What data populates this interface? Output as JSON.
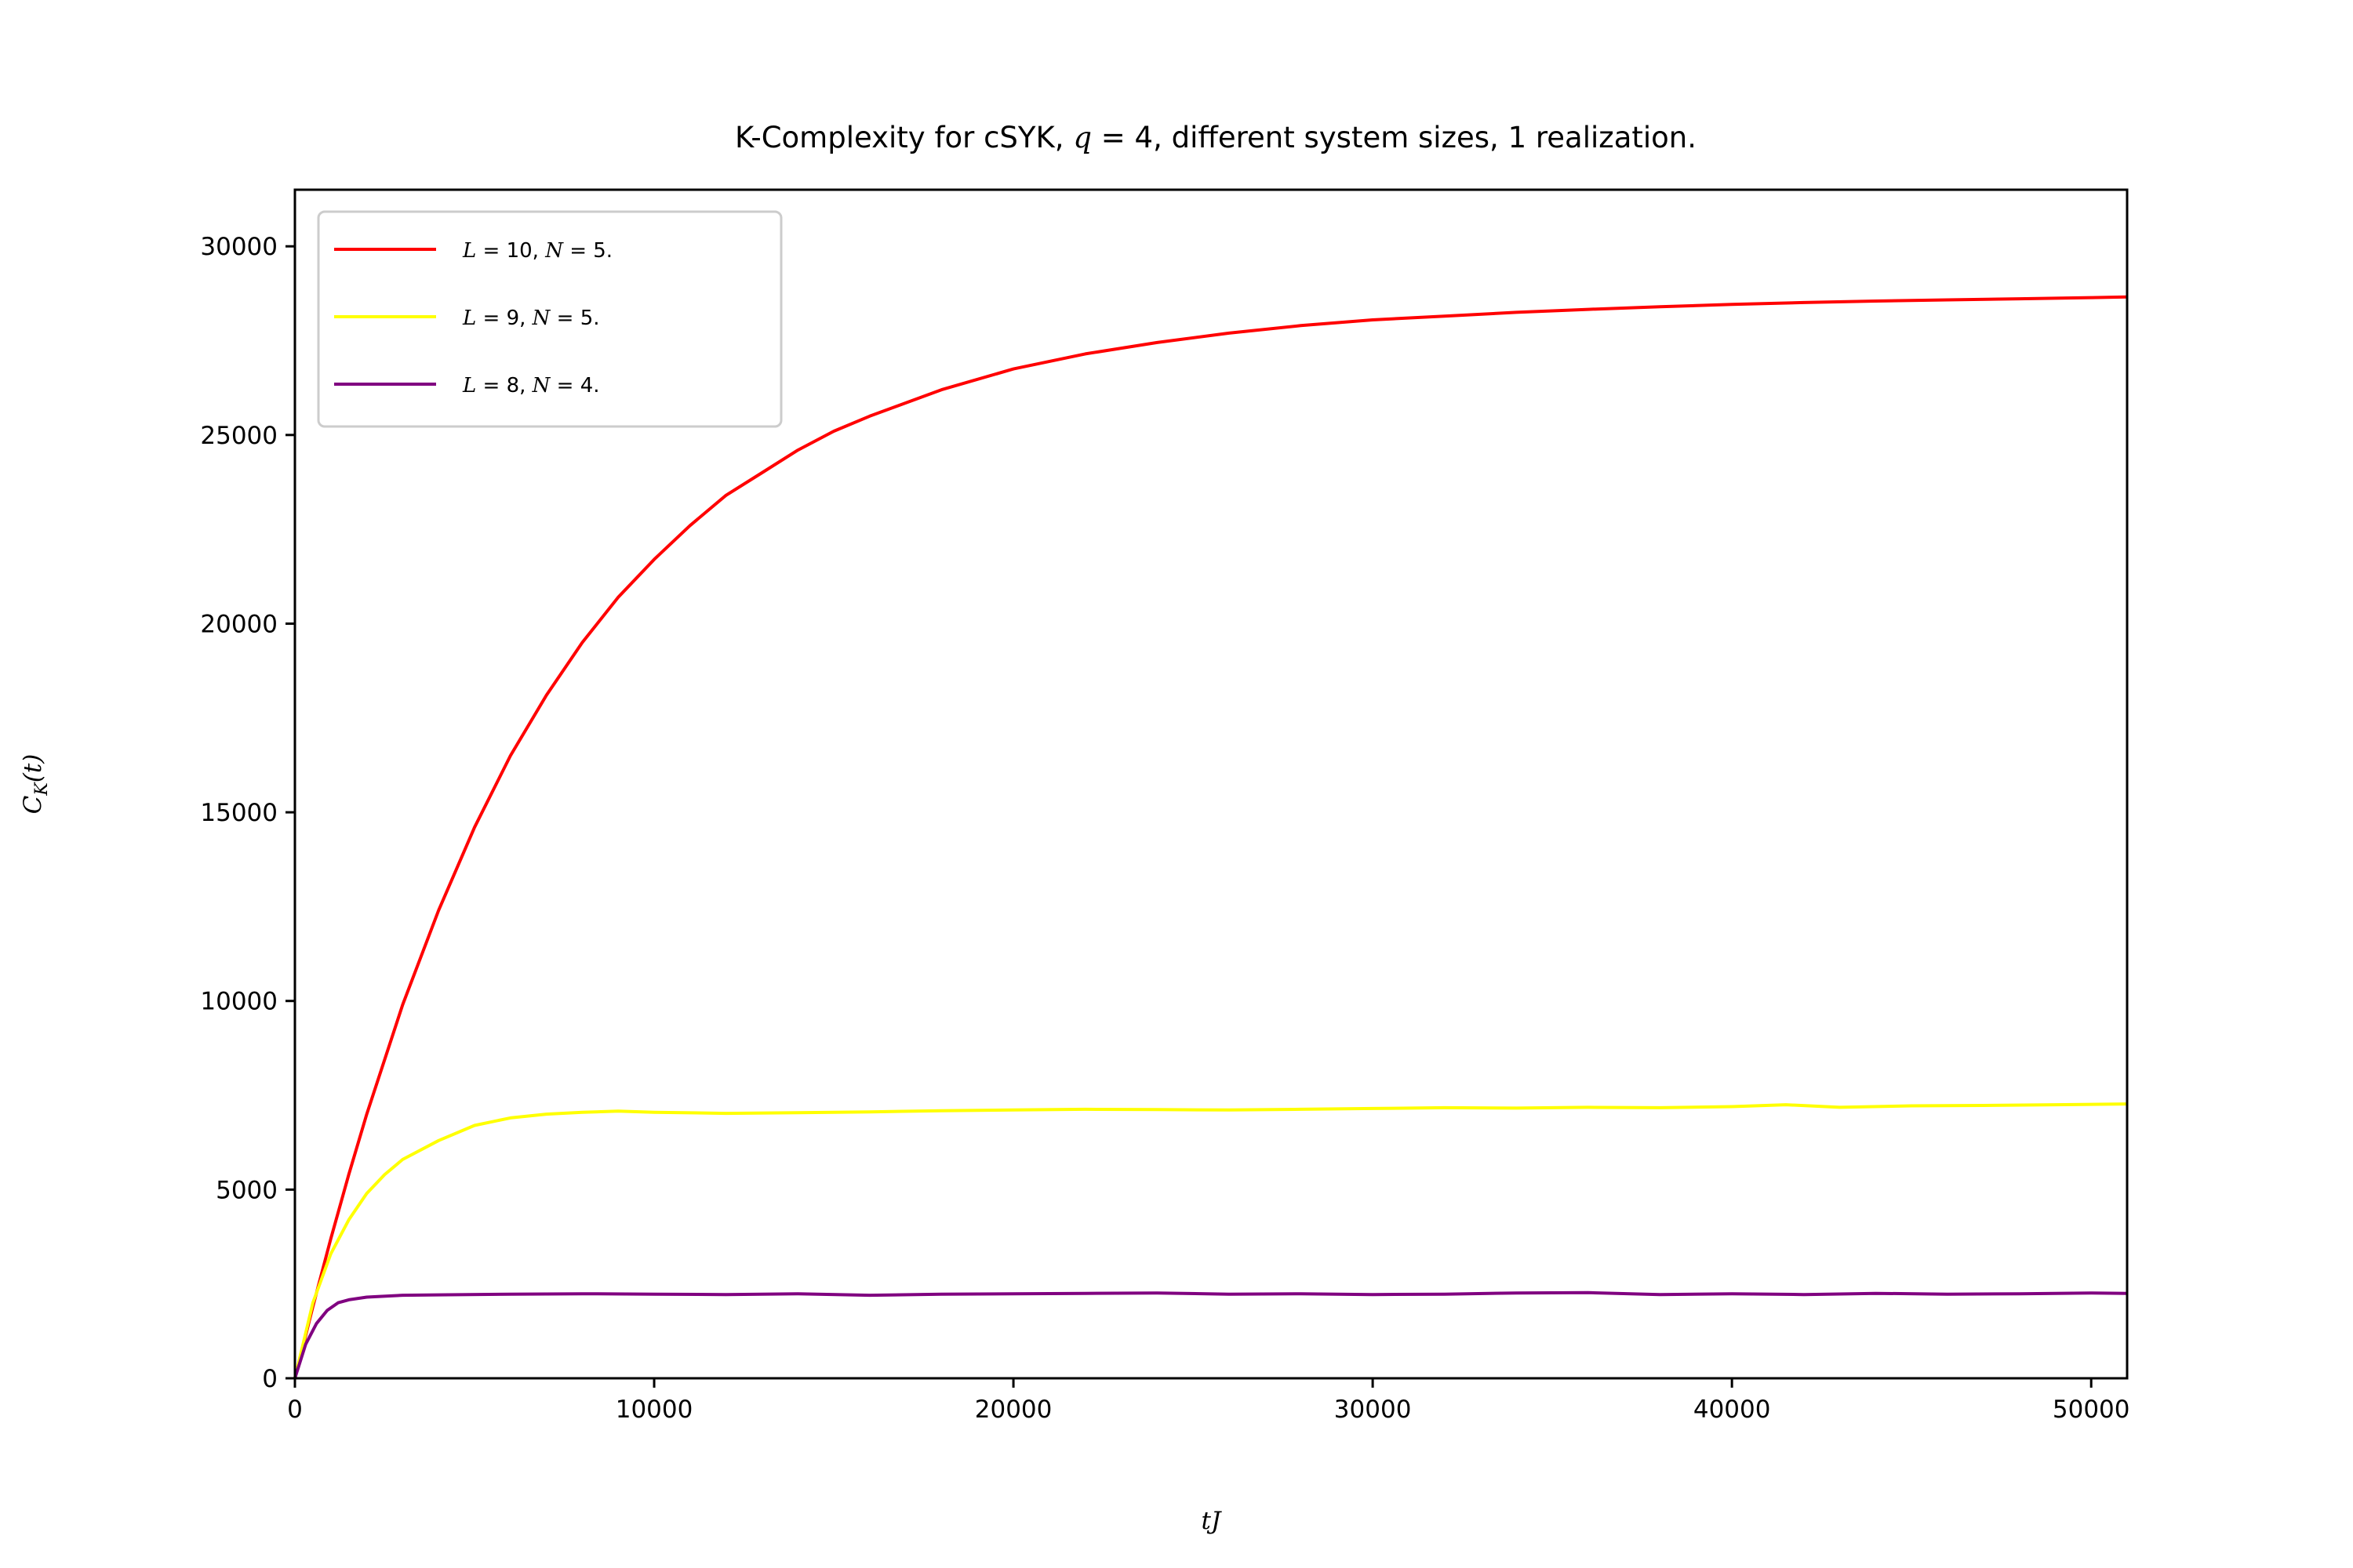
{
  "chart_data": {
    "type": "line",
    "title": {
      "prefix": "K-Complexity for cSYK, ",
      "math_var": "q",
      "math_rest": " = 4",
      "suffix": ", different system sizes, 1 realization."
    },
    "xlabel": {
      "t": "t",
      "J": "J"
    },
    "ylabel": {
      "C": "C",
      "K": "K",
      "rest": "(t)"
    },
    "xlim": [
      0,
      51000
    ],
    "ylim": [
      0,
      31500
    ],
    "xticks": [
      0,
      10000,
      20000,
      30000,
      40000,
      50000
    ],
    "yticks": [
      0,
      5000,
      10000,
      15000,
      20000,
      25000,
      30000
    ],
    "grid": false,
    "legend_position": "upper-left",
    "series": [
      {
        "name": "L = 10, N = 5.",
        "label_parts": {
          "a": "L",
          "b": " = 10, ",
          "c": "N",
          "d": " = 5."
        },
        "color": "#ff0000",
        "x": [
          0,
          500,
          1000,
          1500,
          2000,
          3000,
          4000,
          5000,
          6000,
          7000,
          8000,
          9000,
          10000,
          11000,
          12000,
          13000,
          14000,
          15000,
          16000,
          18000,
          20000,
          22000,
          24000,
          26000,
          28000,
          30000,
          32000,
          34000,
          36000,
          38000,
          40000,
          42000,
          44000,
          46000,
          48000,
          50000,
          51000
        ],
        "y": [
          0,
          1900,
          3700,
          5400,
          7000,
          9900,
          12400,
          14600,
          16500,
          18100,
          19500,
          20700,
          21700,
          22600,
          23400,
          24000,
          24600,
          25100,
          25500,
          26200,
          26750,
          27150,
          27450,
          27700,
          27900,
          28050,
          28150,
          28250,
          28330,
          28400,
          28460,
          28510,
          28550,
          28580,
          28610,
          28640,
          28660
        ]
      },
      {
        "name": "L = 9, N = 5.",
        "label_parts": {
          "a": "L",
          "b": " = 9, ",
          "c": "N",
          "d": " = 5."
        },
        "color": "#ffff00",
        "x": [
          0,
          500,
          1000,
          1500,
          2000,
          2500,
          3000,
          4000,
          5000,
          6000,
          7000,
          8000,
          9000,
          10000,
          12000,
          14000,
          16000,
          18000,
          20000,
          22000,
          24000,
          26000,
          28000,
          30000,
          32000,
          34000,
          36000,
          38000,
          40000,
          41500,
          43000,
          45000,
          47000,
          49000,
          51000
        ],
        "y": [
          0,
          2000,
          3300,
          4200,
          4900,
          5400,
          5800,
          6300,
          6700,
          6900,
          7000,
          7050,
          7080,
          7050,
          7020,
          7040,
          7060,
          7090,
          7110,
          7130,
          7120,
          7110,
          7130,
          7150,
          7170,
          7160,
          7180,
          7170,
          7200,
          7250,
          7180,
          7220,
          7230,
          7250,
          7270
        ]
      },
      {
        "name": "L = 8, N = 4.",
        "label_parts": {
          "a": "L",
          "b": " = 8, ",
          "c": "N",
          "d": " = 4."
        },
        "color": "#800080",
        "x": [
          0,
          300,
          600,
          900,
          1200,
          1500,
          2000,
          3000,
          4000,
          6000,
          8000,
          10000,
          12000,
          14000,
          16000,
          18000,
          20000,
          22000,
          24000,
          26000,
          28000,
          30000,
          32000,
          34000,
          36000,
          38000,
          40000,
          42000,
          44000,
          46000,
          48000,
          50000,
          51000
        ],
        "y": [
          0,
          900,
          1450,
          1800,
          2000,
          2080,
          2150,
          2200,
          2210,
          2230,
          2240,
          2230,
          2220,
          2240,
          2200,
          2230,
          2240,
          2250,
          2260,
          2230,
          2240,
          2220,
          2230,
          2260,
          2270,
          2220,
          2240,
          2220,
          2250,
          2230,
          2240,
          2260,
          2250
        ]
      }
    ]
  }
}
